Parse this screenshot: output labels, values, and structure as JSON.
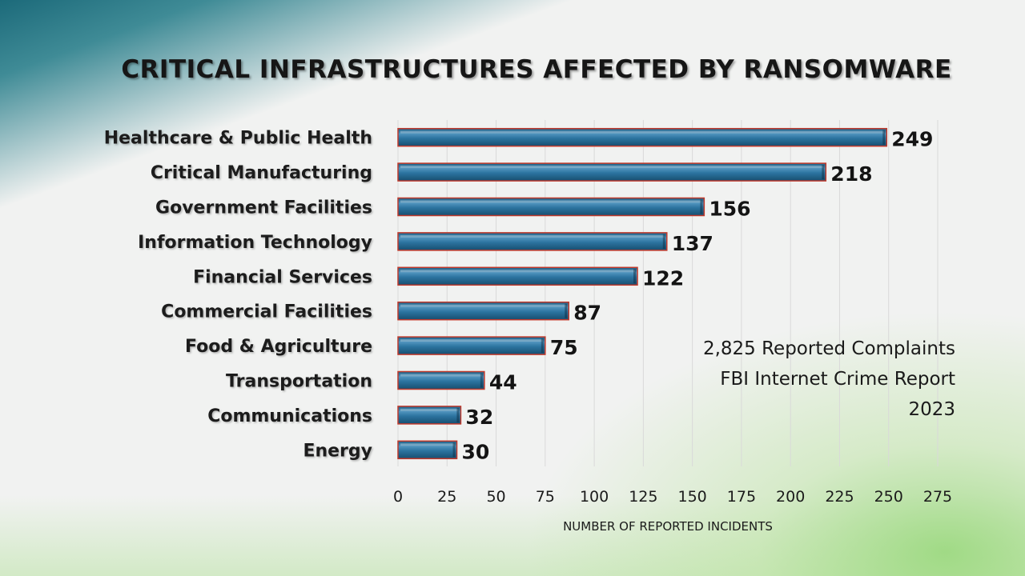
{
  "chart_data": {
    "type": "bar",
    "orientation": "horizontal",
    "title": "CRITICAL INFRASTRUCTURES AFFECTED BY RANSOMWARE",
    "categories": [
      "Healthcare & Public Health",
      "Critical Manufacturing",
      "Government Facilities",
      "Information Technology",
      "Financial Services",
      "Commercial Facilities",
      "Food & Agriculture",
      "Transportation",
      "Communications",
      "Energy"
    ],
    "values": [
      249,
      218,
      156,
      137,
      122,
      87,
      75,
      44,
      32,
      30
    ],
    "xlabel": "NUMBER OF REPORTED INCIDENTS",
    "ylabel": "",
    "xlim": [
      0,
      275
    ],
    "xticks": [
      0,
      25,
      50,
      75,
      100,
      125,
      150,
      175,
      200,
      225,
      250,
      275
    ],
    "grid": true,
    "legend": "none",
    "bar_color": "#2a6d95",
    "bar_edge_color": "#c0392b",
    "annotation": [
      "2,825 Reported Complaints",
      "FBI Internet Crime Report",
      "2023"
    ]
  }
}
